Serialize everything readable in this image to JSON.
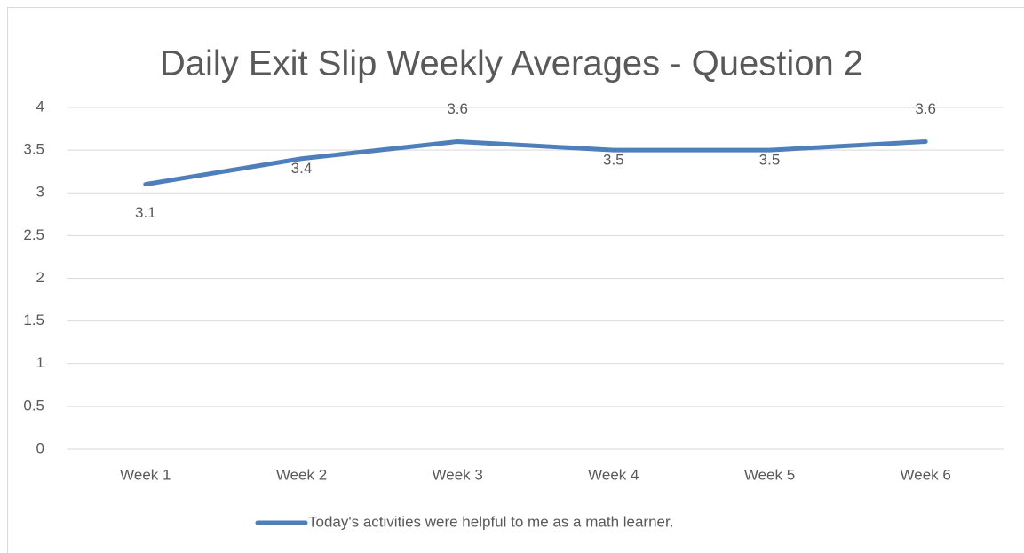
{
  "chart_data": {
    "type": "line",
    "title": "Daily Exit Slip Weekly Averages - Question 2",
    "categories": [
      "Week 1",
      "Week 2",
      "Week 3",
      "Week 4",
      "Week 5",
      "Week 6"
    ],
    "series": [
      {
        "name": "Today's activities were helpful to me as a math learner.",
        "color": "#4f7fba",
        "values": [
          3.1,
          3.4,
          3.6,
          3.5,
          3.5,
          3.6
        ]
      }
    ],
    "ylim": [
      0,
      4
    ],
    "yticks": [
      0,
      0.5,
      1,
      1.5,
      2,
      2.5,
      3,
      3.5,
      4
    ],
    "grid": true,
    "legend": "bottom"
  }
}
